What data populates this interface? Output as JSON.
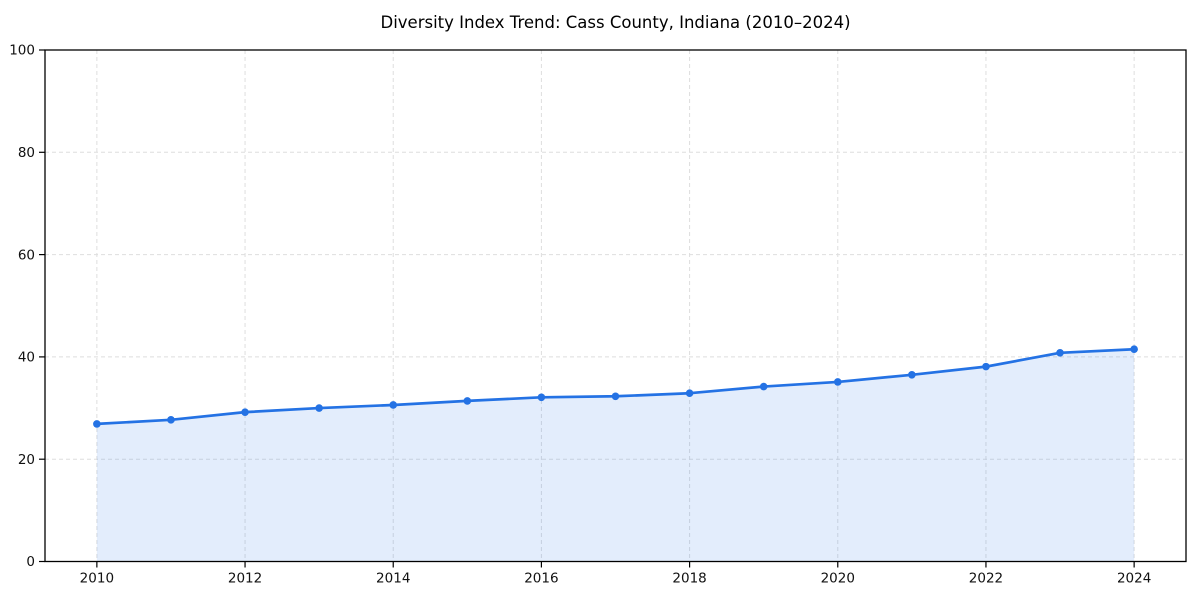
{
  "chart_data": {
    "type": "line",
    "title": "Diversity Index Trend: Cass County, Indiana (2010–2024)",
    "x": [
      2010,
      2011,
      2012,
      2013,
      2014,
      2015,
      2016,
      2017,
      2018,
      2019,
      2020,
      2021,
      2022,
      2023,
      2024
    ],
    "series": [
      {
        "name": "Diversity Index",
        "values": [
          26.9,
          27.7,
          29.2,
          30.0,
          30.6,
          31.4,
          32.1,
          32.3,
          32.9,
          34.2,
          35.1,
          36.5,
          38.1,
          40.8,
          41.5
        ]
      }
    ],
    "xlabel": "",
    "ylabel": "",
    "xlim": [
      2009.3,
      2024.7
    ],
    "ylim": [
      0,
      100
    ],
    "xticks": [
      2010,
      2012,
      2014,
      2016,
      2018,
      2020,
      2022,
      2024
    ],
    "yticks": [
      0,
      20,
      40,
      60,
      80,
      100
    ],
    "grid": "dashed-both-axes",
    "legend": "none",
    "marker": "circle",
    "area_fill": true,
    "colors": {
      "line": "#2472e4",
      "marker": "#2472e4",
      "area": "rgba(36,114,228,0.13)",
      "grid": "#dedede",
      "spine": "#000000",
      "tick_label": "#111111",
      "background": "#ffffff"
    }
  }
}
